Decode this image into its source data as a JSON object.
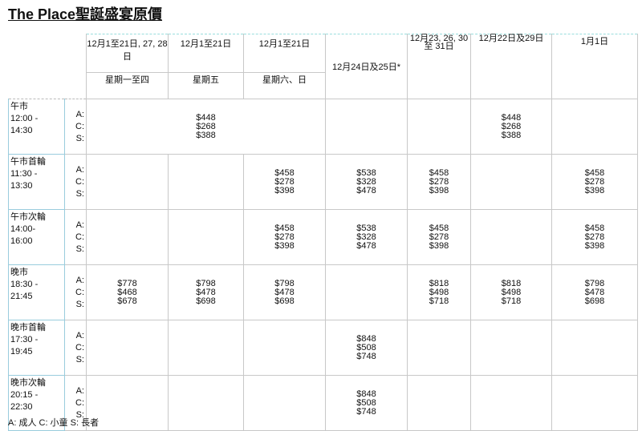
{
  "title": "The Place聖誕盛宴原價",
  "headers": {
    "dates": [
      "12月1至21日, 27, 28日",
      "12月1至21日",
      "12月1至21日",
      "12月24日及25日*",
      "12月23, 26, 30至 31日",
      "12月22日及29日",
      "1月1日"
    ],
    "days": [
      "星期一至四",
      "星期五",
      "星期六、日"
    ]
  },
  "labels": [
    "A:",
    "C:",
    "S:"
  ],
  "rows": [
    {
      "name": "午市",
      "time": "12:00 - 14:30",
      "cells": [
        {
          "span": 3,
          "p": [
            "$448",
            "$268",
            "$388"
          ]
        },
        {
          "p": []
        },
        {
          "p": []
        },
        {
          "p": [
            "$448",
            "$268",
            "$388"
          ]
        },
        {
          "p": []
        }
      ]
    },
    {
      "name": "午市首輪",
      "time": "11:30 - 13:30",
      "cells": [
        {
          "p": []
        },
        {
          "p": []
        },
        {
          "p": [
            "$458",
            "$278",
            "$398"
          ]
        },
        {
          "p": [
            "$538",
            "$328",
            "$478"
          ]
        },
        {
          "p": [
            "$458",
            "$278",
            "$398"
          ]
        },
        {
          "p": []
        },
        {
          "p": [
            "$458",
            "$278",
            "$398"
          ]
        }
      ]
    },
    {
      "name": "午市次輪",
      "time": "14:00-16:00",
      "cells": [
        {
          "p": []
        },
        {
          "p": []
        },
        {
          "p": [
            "$458",
            "$278",
            "$398"
          ]
        },
        {
          "p": [
            "$538",
            "$328",
            "$478"
          ]
        },
        {
          "p": [
            "$458",
            "$278",
            "$398"
          ]
        },
        {
          "p": []
        },
        {
          "p": [
            "$458",
            "$278",
            "$398"
          ]
        }
      ]
    },
    {
      "name": "晚市",
      "time": "18:30 - 21:45",
      "cells": [
        {
          "p": [
            "$778",
            "$468",
            "$678"
          ]
        },
        {
          "p": [
            "$798",
            "$478",
            "$698"
          ]
        },
        {
          "p": [
            "$798",
            "$478",
            "$698"
          ]
        },
        {
          "p": []
        },
        {
          "p": [
            "$818",
            "$498",
            "$718"
          ]
        },
        {
          "p": [
            "$818",
            "$498",
            "$718"
          ]
        },
        {
          "p": [
            "$798",
            "$478",
            "$698"
          ]
        }
      ]
    },
    {
      "name": "晚市首輪",
      "time": "17:30 - 19:45",
      "cells": [
        {
          "p": []
        },
        {
          "p": []
        },
        {
          "p": []
        },
        {
          "p": [
            "$848",
            "$508",
            "$748"
          ]
        },
        {
          "p": []
        },
        {
          "p": []
        },
        {
          "p": []
        }
      ]
    },
    {
      "name": "晚市次輪",
      "time": "20:15 - 22:30",
      "cells": [
        {
          "p": []
        },
        {
          "p": []
        },
        {
          "p": []
        },
        {
          "p": [
            "$848",
            "$508",
            "$748"
          ]
        },
        {
          "p": []
        },
        {
          "p": []
        },
        {
          "p": []
        }
      ]
    }
  ],
  "legend": "A: 成人  C: 小童  S: 長者"
}
